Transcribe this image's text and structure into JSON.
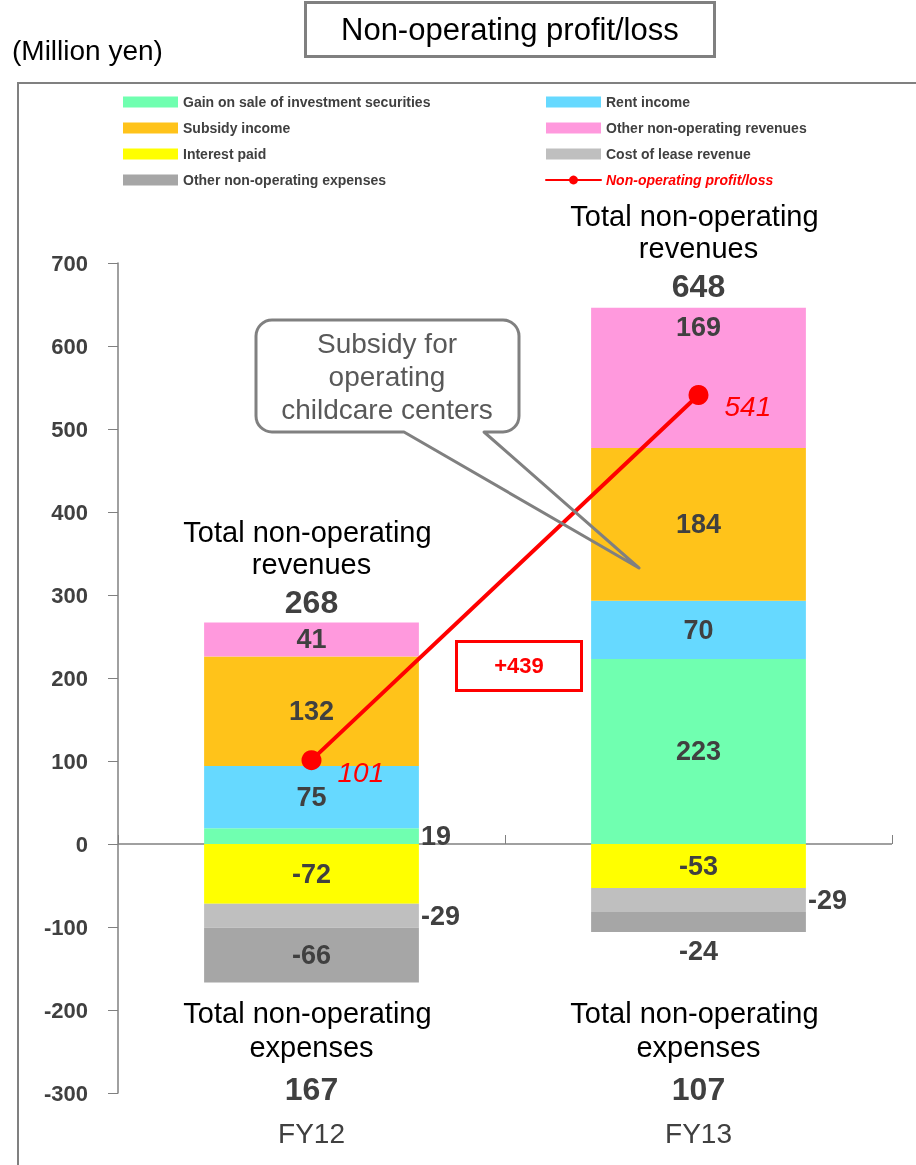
{
  "chart_data": {
    "type": "bar",
    "title": "Non-operating profit/loss",
    "categories": [
      "FY12",
      "FY13"
    ],
    "series": [
      {
        "name": "Gain on sale of investment securities",
        "color": "#70ffb0",
        "values": [
          19,
          223
        ]
      },
      {
        "name": "Rent income",
        "color": "#66d9ff",
        "values": [
          75,
          70
        ]
      },
      {
        "name": "Subsidy income",
        "color": "#ffc31a",
        "values": [
          132,
          184
        ]
      },
      {
        "name": "Other non-operating revenues",
        "color": "#ff99dd",
        "values": [
          41,
          169
        ]
      },
      {
        "name": "Interest paid",
        "color": "#ffff00",
        "values": [
          -72,
          -53
        ]
      },
      {
        "name": "Cost of lease revenue",
        "color": "#bfbfbf",
        "values": [
          -29,
          -29
        ]
      },
      {
        "name": "Other non-operating expenses",
        "color": "#a6a6a6",
        "values": [
          -66,
          -24
        ]
      },
      {
        "name": "Non-operating profit/loss",
        "type": "line",
        "color": "#ff0000",
        "values": [
          101,
          541
        ]
      }
    ],
    "stacked": true,
    "data_labels": true,
    "ylim": [
      -300,
      700
    ],
    "yticks": [
      -300,
      -200,
      -100,
      0,
      100,
      200,
      300,
      400,
      500,
      600,
      700
    ],
    "grid": false,
    "legend": "top",
    "marker": "circle",
    "ref_lines": [
      {
        "axis": "y",
        "value": 0,
        "color": "#808080"
      }
    ],
    "annotations": [
      "(Million yen)",
      {
        "text": "Total non-operating revenues",
        "x": "FY12",
        "y": 268
      },
      {
        "text": "268",
        "x": "FY12",
        "y": 268
      },
      {
        "text": "Total non-operating revenues",
        "x": "FY13",
        "y": 648
      },
      {
        "text": "648",
        "x": "FY13",
        "y": 648
      },
      "Total non-operating expenses",
      "167",
      "Total non-operating expenses",
      "107",
      "Subsidy for operating childcare centers",
      "+439"
    ]
  }
}
